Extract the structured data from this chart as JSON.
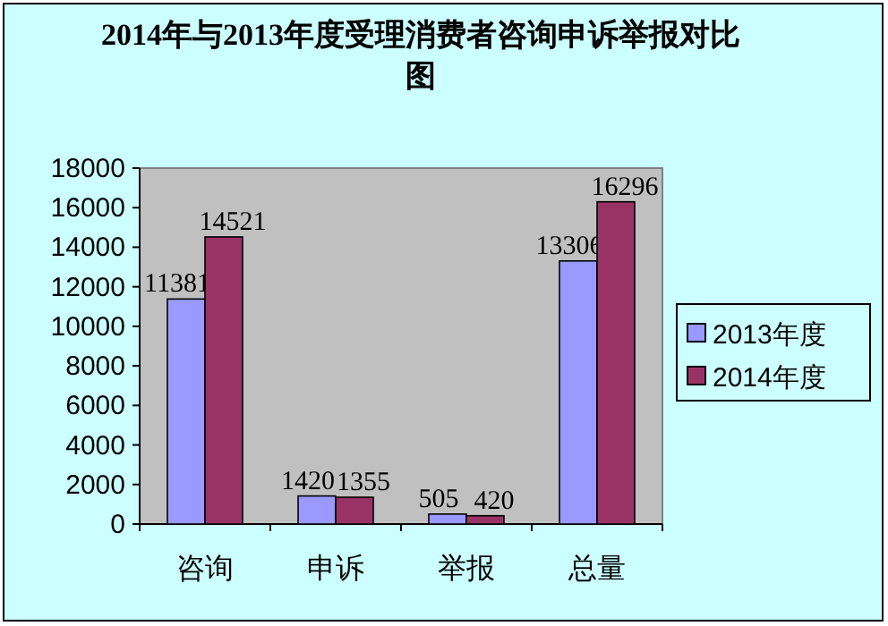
{
  "chart_data": {
    "type": "bar",
    "title": "2014年与2013年度受理消费者咨询申诉举报对比图",
    "categories": [
      "咨询",
      "申诉",
      "举报",
      "总量"
    ],
    "series": [
      {
        "name": "2013年度",
        "color": "#9999ff",
        "values": [
          11381,
          1420,
          505,
          13306
        ]
      },
      {
        "name": "2014年度",
        "color": "#993366",
        "values": [
          14521,
          1355,
          420,
          16296
        ]
      }
    ],
    "ylim": [
      0,
      18000
    ],
    "yticks": [
      0,
      2000,
      4000,
      6000,
      8000,
      10000,
      12000,
      14000,
      16000,
      18000
    ],
    "data_labels": true,
    "legend": "right",
    "grid": false
  }
}
